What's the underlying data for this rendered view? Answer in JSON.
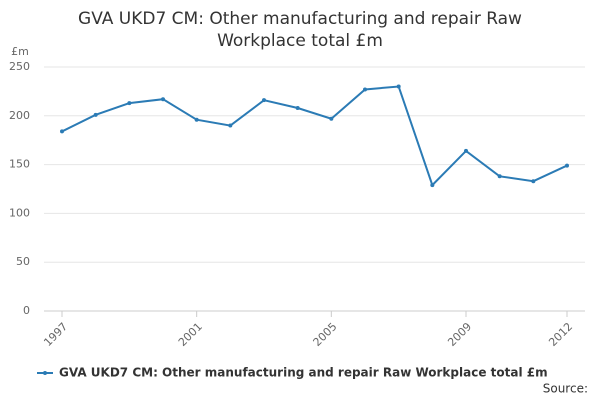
{
  "chart_data": {
    "type": "line",
    "title": "GVA UKD7 CM: Other manufacturing and repair Raw Workplace total £m",
    "y_label": "£m",
    "x": [
      1997,
      1998,
      1999,
      2000,
      2001,
      2002,
      2003,
      2004,
      2005,
      2006,
      2007,
      2008,
      2009,
      2010,
      2011,
      2012
    ],
    "series": [
      {
        "name": "GVA UKD7 CM: Other manufacturing and repair Raw Workplace total £m",
        "color": "#2b7bb5",
        "values": [
          184,
          201,
          213,
          217,
          196,
          190,
          216,
          208,
          197,
          227,
          230,
          129,
          164,
          138,
          133,
          149
        ]
      }
    ],
    "xlim": [
      1997,
      2012
    ],
    "xticks": [
      1997,
      2001,
      2005,
      2009,
      2012
    ],
    "ylim": [
      0,
      250
    ],
    "yticks": [
      0,
      50,
      100,
      150,
      200,
      250
    ],
    "grid": true,
    "legend": "bottom",
    "source": "Source:"
  }
}
